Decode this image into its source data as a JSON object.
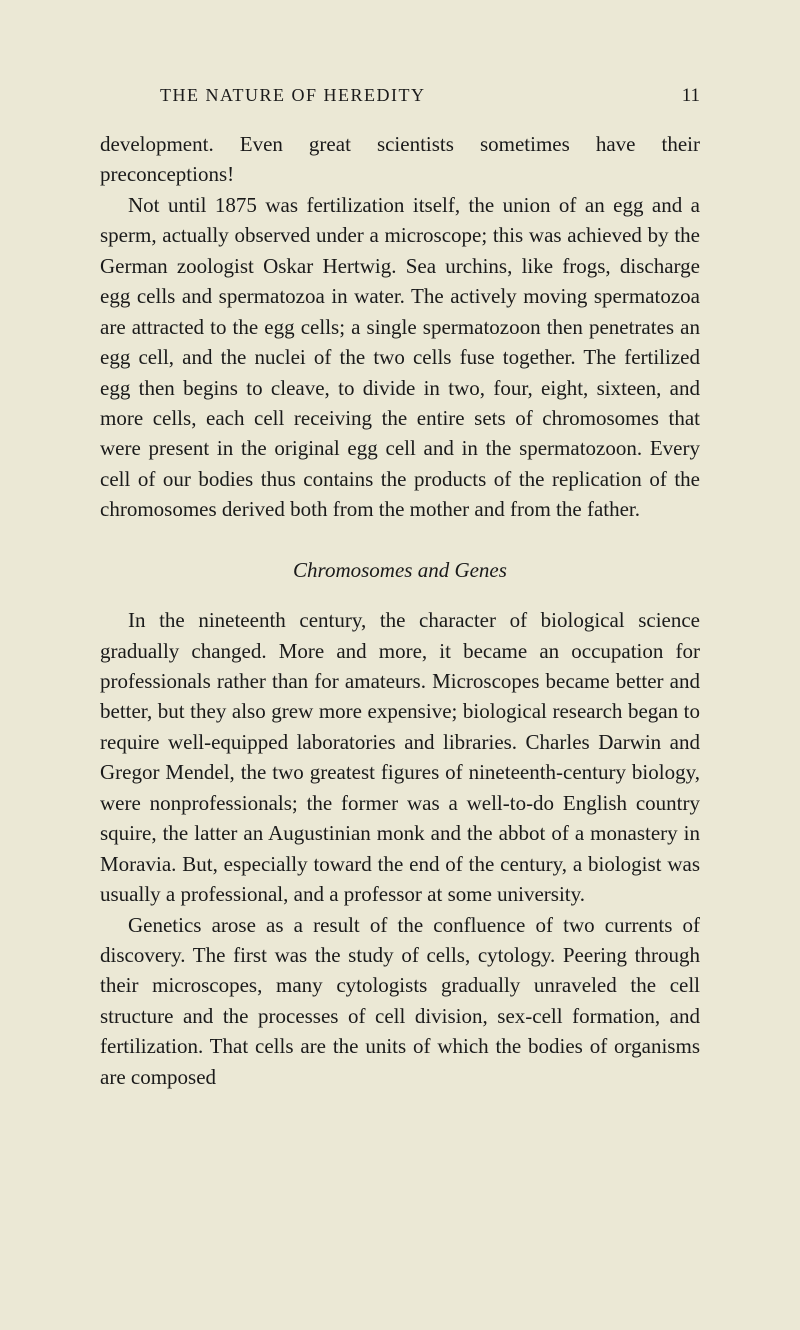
{
  "header": {
    "title": "THE NATURE OF HEREDITY",
    "pageNumber": "11"
  },
  "content": {
    "para1": "development. Even great scientists sometimes have their preconceptions!",
    "para2": "Not until 1875 was fertilization itself, the union of an egg and a sperm, actually observed under a microscope; this was achieved by the German zoologist Oskar Hertwig. Sea urchins, like frogs, discharge egg cells and spermatozoa in water. The actively moving spermatozoa are attracted to the egg cells; a single spermatozoon then penetrates an egg cell, and the nuclei of the two cells fuse together. The ferti­lized egg then begins to cleave, to divide in two, four, eight, sixteen, and more cells, each cell receiving the entire sets of chromosomes that were present in the original egg cell and in the spermatozoon. Every cell of our bodies thus contains the products of the replication of the chromosomes derived both from the mother and from the father.",
    "sectionHeading": "Chromosomes and Genes",
    "para3": "In the nineteenth century, the character of biological science gradually changed. More and more, it became an occupation for professionals rather than for amateurs. Microscopes became better and better, but they also grew more expensive; biological research began to require well-equipped laboratories and libraries. Charles Darwin and Gregor Mendel, the two greatest figures of nineteenth-century biology, were nonprofessionals; the former was a well-to-do English country squire, the latter an Augus­tinian monk and the abbot of a monastery in Moravia. But, especially toward the end of the century, a biologist was usually a professional, and a professor at some university.",
    "para4": "Genetics arose as a result of the confluence of two cur­rents of discovery. The first was the study of cells, cytology. Peering through their microscopes, many cytologists gradu­ally unraveled the cell structure and the processes of cell division, sex-cell formation, and fertilization. That cells are the units of which the bodies of organisms are composed"
  },
  "styling": {
    "backgroundColor": "#ebe8d5",
    "textColor": "#1a1a1a",
    "bodyFontSize": 21,
    "headerFontSize": 18,
    "pageNumberFontSize": 19,
    "lineHeight": 1.45,
    "fontFamily": "Georgia, Times New Roman, serif",
    "pageWidth": 800,
    "pageHeight": 1330,
    "textIndent": 28
  }
}
